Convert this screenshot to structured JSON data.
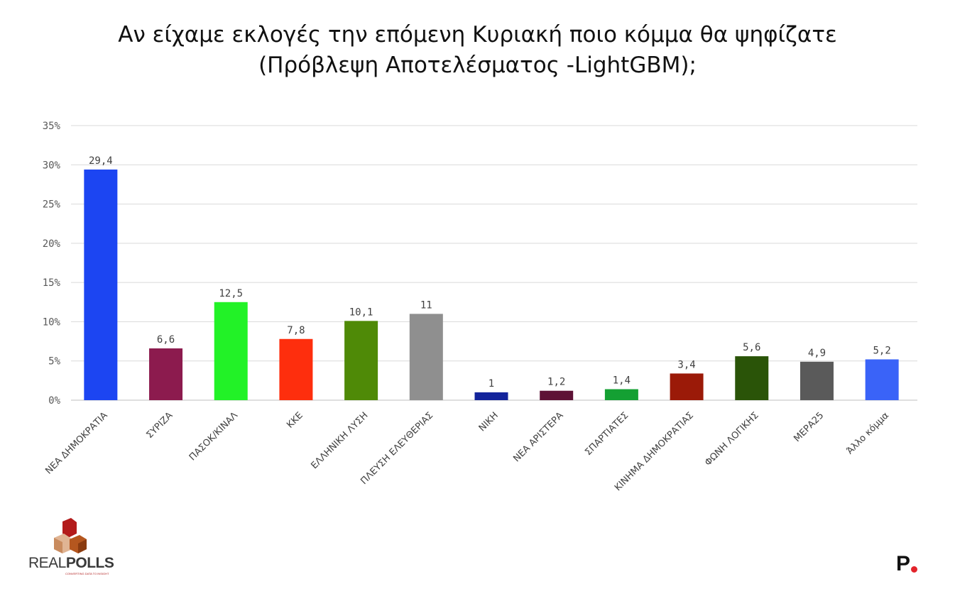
{
  "title": {
    "line1": "Αν είχαμε εκλογές την επόμενη Κυριακή ποιο κόμμα θα ψηφίζατε",
    "line2": "(Πρόβλεψη Αποτελέσματος -LightGBM);"
  },
  "chart_data": {
    "type": "bar",
    "title": "Αν είχαμε εκλογές την επόμενη Κυριακή ποιο κόμμα θα ψηφίζατε (Πρόβλεψη Αποτελέσματος -LightGBM);",
    "categories": [
      "ΝΕΑ ΔΗΜΟΚΡΑΤΙΑ",
      "ΣΥΡΙΖΑ",
      "ΠΑΣΟΚ/ΚΙΝΑΛ",
      "ΚΚΕ",
      "ΕΛΛΗΝΙΚΗ ΛΥΣΗ",
      "ΠΛΕΥΣΗ ΕΛΕΥΘΕΡΙΑΣ",
      "ΝΙΚΗ",
      "ΝΕΑ ΑΡΙΣΤΕΡΑ",
      "ΣΠΑΡΤΙΑΤΕΣ",
      "ΚΙΝΗΜΑ ΔΗΜΟΚΡΑΤΙΑΣ",
      "ΦΩΝΗ ΛΟΓΙΚΗΣ",
      "ΜΕΡΑ25",
      "Άλλο κόμμα"
    ],
    "values": [
      29.4,
      6.6,
      12.5,
      7.8,
      10.1,
      11,
      1,
      1.2,
      1.4,
      3.4,
      5.6,
      4.9,
      5.2
    ],
    "data_labels": [
      "29,4",
      "6,6",
      "12,5",
      "7,8",
      "10,1",
      "11",
      "1",
      "1,2",
      "1,4",
      "3,4",
      "5,6",
      "4,9",
      "5,2"
    ],
    "colors": [
      "#1c45f2",
      "#8c1b4e",
      "#22f227",
      "#fe2e0d",
      "#4f8a07",
      "#8f8f8f",
      "#13249b",
      "#5e1236",
      "#14a033",
      "#9b1a08",
      "#2a5408",
      "#5a5a5a",
      "#3a63f8"
    ],
    "ylim": [
      0,
      35
    ],
    "yticks": [
      0,
      5,
      10,
      15,
      20,
      25,
      30,
      35
    ],
    "ytick_labels": [
      "0%",
      "5%",
      "10%",
      "15%",
      "20%",
      "25%",
      "30%",
      "35%"
    ],
    "xlabel": "",
    "ylabel": "",
    "grid": true,
    "legend": "none"
  },
  "logos": {
    "realpolls_part1": "REAL",
    "realpolls_part2": "POLLS",
    "realpolls_tagline": "CONVERTING DATA TO INSIGHT",
    "p_letter": "P"
  },
  "colors": {
    "grid": "#d9d9d9",
    "axis_text": "#595959",
    "label_text": "#404040",
    "brand_red": "#e3232b"
  }
}
